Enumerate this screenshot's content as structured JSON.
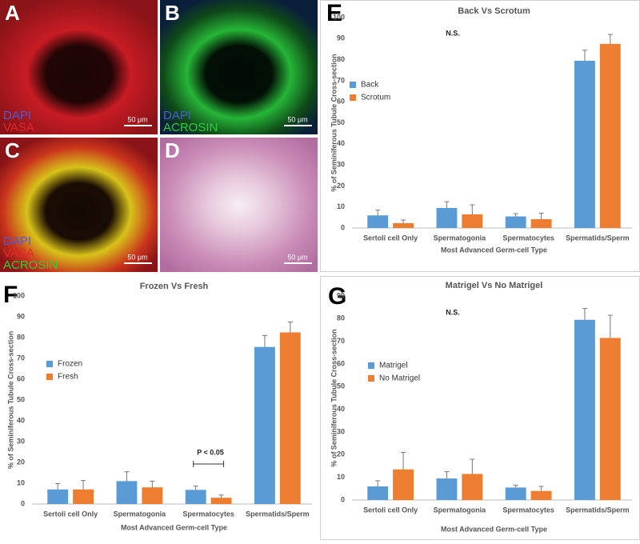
{
  "images": [
    {
      "panel": "A",
      "labels": [
        {
          "text": "DAPI",
          "color": "#4b5ed6"
        },
        {
          "text": "VASA",
          "color": "#e8262b"
        }
      ],
      "scale": "50 μm"
    },
    {
      "panel": "B",
      "labels": [
        {
          "text": "DAPI",
          "color": "#4b5ed6"
        },
        {
          "text": "ACROSIN",
          "color": "#2bd13a"
        }
      ],
      "scale": "50 μm"
    },
    {
      "panel": "C",
      "labels": [
        {
          "text": "DAPI",
          "color": "#4b5ed6"
        },
        {
          "text": "VASA",
          "color": "#e8262b"
        },
        {
          "text": "ACROSIN",
          "color": "#2bd13a"
        }
      ],
      "scale": "50 μm"
    },
    {
      "panel": "D",
      "labels": [],
      "scale": "50 μm"
    }
  ],
  "chart_data": [
    {
      "type": "bar",
      "panel": "E",
      "title": "Back Vs Scrotum",
      "annotation": "N.S.",
      "x_label": "Most Advanced Germ-cell Type",
      "y_label": "% of Seminiferous Tubule Cross-section",
      "categories": [
        "Sertoli cell Only",
        "Spermatogonia",
        "Spermatocytes",
        "Spermatids/Sperm"
      ],
      "series": [
        {
          "name": "Back",
          "color": "#5b9bd5",
          "values": [
            6,
            9.5,
            5.5,
            79.5
          ],
          "errors": [
            2.5,
            3,
            1.3,
            5
          ]
        },
        {
          "name": "Scrotum",
          "color": "#ed7d31",
          "values": [
            2.3,
            6.5,
            4.2,
            87.5
          ],
          "errors": [
            1.5,
            4.5,
            2.8,
            4.5
          ]
        }
      ],
      "ylim": [
        0,
        100
      ],
      "yticks": [
        0,
        10,
        20,
        30,
        40,
        50,
        60,
        70,
        80,
        90,
        100
      ],
      "grid": false,
      "legend": "center-left"
    },
    {
      "type": "bar",
      "panel": "F",
      "title": "Frozen Vs Fresh",
      "annotation": "P < 0.05",
      "x_label": "Most Advanced Germ-cell Type",
      "y_label": "% of Seminiferous Tubule Cross-section",
      "categories": [
        "Sertoli cell Only",
        "Spermatogonia",
        "Spermatocytes",
        "Spermatids/Sperm"
      ],
      "series": [
        {
          "name": "Frozen",
          "color": "#5b9bd5",
          "values": [
            7,
            11,
            6.8,
            75.5
          ],
          "errors": [
            2.8,
            4.5,
            1.8,
            5.5
          ]
        },
        {
          "name": "Fresh",
          "color": "#ed7d31",
          "values": [
            7,
            8,
            3,
            82.5
          ],
          "errors": [
            4.3,
            3,
            1.3,
            5
          ]
        }
      ],
      "ylim": [
        0,
        100
      ],
      "yticks": [
        0,
        10,
        20,
        30,
        40,
        50,
        60,
        70,
        80,
        90,
        100
      ],
      "grid": false,
      "legend": "center-left"
    },
    {
      "type": "bar",
      "panel": "G",
      "title": "Matrigel Vs No Matrigel",
      "annotation": "N.S.",
      "x_label": "Most Advanced Germ-cell Type",
      "y_label": "% of Seminiferous Tubule Cross-section",
      "categories": [
        "Sertoli cell Only",
        "Spermatogonia",
        "Spermatocytes",
        "Spermatids/Sperm"
      ],
      "series": [
        {
          "name": "Matrigel",
          "color": "#5b9bd5",
          "values": [
            6,
            9.5,
            5.5,
            79.5
          ],
          "errors": [
            2.5,
            3,
            1,
            5
          ]
        },
        {
          "name": "No Matrigel",
          "color": "#ed7d31",
          "values": [
            13.5,
            11.5,
            4,
            71.5
          ],
          "errors": [
            7.5,
            6.5,
            2,
            10
          ]
        }
      ],
      "ylim": [
        0,
        90
      ],
      "yticks": [
        0,
        10,
        20,
        30,
        40,
        50,
        60,
        70,
        80,
        90
      ],
      "grid": false,
      "legend": "center-left"
    }
  ]
}
